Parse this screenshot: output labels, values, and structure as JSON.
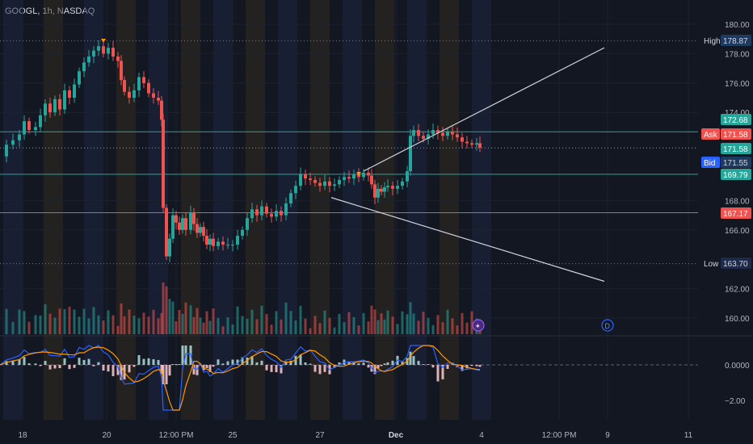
{
  "header": {
    "title": "GOOGL, 1h, NASDAQ"
  },
  "colors": {
    "background": "#131722",
    "up": "#26a69a",
    "down": "#ef5350",
    "ask_line": "#ef5350",
    "bid_line": "#26a69a",
    "trend": "#d1d4dc",
    "macd": "#2962ff",
    "signal": "#ff9800",
    "band_blue": "#1e2a4a",
    "band_orange": "#3a2e22"
  },
  "chart_data": {
    "type": "candlestick",
    "symbol": "GOOGL",
    "interval": "1h",
    "exchange": "NASDAQ",
    "price_axis": {
      "range": [
        159,
        181
      ],
      "ticks": [
        "180.00",
        "178.00",
        "176.00",
        "174.00",
        "168.00",
        "166.00",
        "162.00",
        "160.00"
      ]
    },
    "time_axis": {
      "labels": [
        "18",
        "20",
        "12:00 PM",
        "25",
        "27",
        "Dec",
        "4",
        "12:00 PM",
        "9",
        "11"
      ]
    },
    "price_labels": [
      {
        "label": "High",
        "value": "178.87"
      },
      {
        "value": "172.68"
      },
      {
        "label": "Ask",
        "value": "171.58"
      },
      {
        "value": "171.58"
      },
      {
        "label": "Bid",
        "value": "171.55"
      },
      {
        "value": "169.79"
      },
      {
        "value": "167.17"
      },
      {
        "label": "Low",
        "value": "163.70"
      }
    ],
    "horizontal_lines": [
      178.87,
      172.68,
      171.58,
      169.79,
      167.17,
      163.7
    ],
    "trendlines": [
      {
        "from": [
          450,
          170.0
        ],
        "to": [
          748,
          178.4
        ]
      },
      {
        "from": [
          410,
          168.2
        ],
        "to": [
          748,
          162.5
        ]
      }
    ],
    "macd_panel": {
      "ticks": [
        "0.0000",
        "−2.00"
      ],
      "range": [
        -2.6,
        1.4
      ]
    },
    "markers": [
      "D"
    ],
    "close_path": [
      [
        0,
        171.0
      ],
      [
        8,
        171.8
      ],
      [
        16,
        172.1
      ],
      [
        24,
        172.5
      ],
      [
        30,
        173.4
      ],
      [
        36,
        172.8
      ],
      [
        44,
        173.0
      ],
      [
        50,
        173.8
      ],
      [
        56,
        174.6
      ],
      [
        62,
        174.0
      ],
      [
        68,
        174.9
      ],
      [
        74,
        174.2
      ],
      [
        80,
        175.5
      ],
      [
        86,
        175.0
      ],
      [
        92,
        175.9
      ],
      [
        98,
        176.8
      ],
      [
        104,
        177.4
      ],
      [
        110,
        177.8
      ],
      [
        116,
        178.2
      ],
      [
        122,
        178.5
      ],
      [
        128,
        178.0
      ],
      [
        134,
        178.4
      ],
      [
        140,
        177.8
      ],
      [
        146,
        177.5
      ],
      [
        150,
        176.2
      ],
      [
        154,
        175.4
      ],
      [
        160,
        175.0
      ],
      [
        166,
        175.5
      ],
      [
        172,
        176.4
      ],
      [
        178,
        176.0
      ],
      [
        184,
        175.3
      ],
      [
        190,
        175.0
      ],
      [
        196,
        174.8
      ],
      [
        200,
        173.5
      ],
      [
        202,
        167.5
      ],
      [
        206,
        164.2
      ],
      [
        210,
        165.4
      ],
      [
        214,
        167.0
      ],
      [
        218,
        166.5
      ],
      [
        222,
        166.0
      ],
      [
        226,
        166.8
      ],
      [
        230,
        166.0
      ],
      [
        236,
        167.2
      ],
      [
        240,
        166.4
      ],
      [
        244,
        165.8
      ],
      [
        248,
        166.2
      ],
      [
        252,
        165.6
      ],
      [
        256,
        165.0
      ],
      [
        260,
        165.4
      ],
      [
        264,
        164.9
      ],
      [
        270,
        165.2
      ],
      [
        276,
        165.0
      ],
      [
        282,
        165.0
      ],
      [
        288,
        165.0
      ],
      [
        294,
        165.6
      ],
      [
        300,
        166.0
      ],
      [
        306,
        166.8
      ],
      [
        312,
        167.4
      ],
      [
        318,
        167.0
      ],
      [
        324,
        167.6
      ],
      [
        330,
        167.1
      ],
      [
        336,
        166.9
      ],
      [
        342,
        167.3
      ],
      [
        348,
        167.0
      ],
      [
        354,
        167.8
      ],
      [
        360,
        168.5
      ],
      [
        366,
        169.0
      ],
      [
        372,
        169.8
      ],
      [
        378,
        169.5
      ],
      [
        384,
        169.4
      ],
      [
        390,
        169.2
      ],
      [
        396,
        169.0
      ],
      [
        402,
        169.3
      ],
      [
        408,
        169.0
      ],
      [
        414,
        169.1
      ],
      [
        420,
        169.4
      ],
      [
        426,
        169.6
      ],
      [
        432,
        169.5
      ],
      [
        438,
        169.8
      ],
      [
        444,
        169.6
      ],
      [
        450,
        169.9
      ],
      [
        456,
        169.7
      ],
      [
        460,
        169.1
      ],
      [
        464,
        168.2
      ],
      [
        468,
        168.8
      ],
      [
        472,
        168.6
      ],
      [
        476,
        168.9
      ],
      [
        480,
        169.0
      ],
      [
        486,
        168.8
      ],
      [
        492,
        169.0
      ],
      [
        498,
        169.3
      ],
      [
        504,
        170.0
      ],
      [
        508,
        172.4
      ],
      [
        512,
        172.8
      ],
      [
        518,
        172.4
      ],
      [
        524,
        172.2
      ],
      [
        530,
        172.5
      ],
      [
        536,
        172.8
      ],
      [
        542,
        172.6
      ],
      [
        548,
        172.4
      ],
      [
        554,
        172.7
      ],
      [
        560,
        172.5
      ],
      [
        566,
        172.3
      ],
      [
        572,
        172.0
      ],
      [
        578,
        171.9
      ],
      [
        584,
        171.8
      ],
      [
        590,
        171.9
      ],
      [
        594,
        171.6
      ]
    ]
  }
}
